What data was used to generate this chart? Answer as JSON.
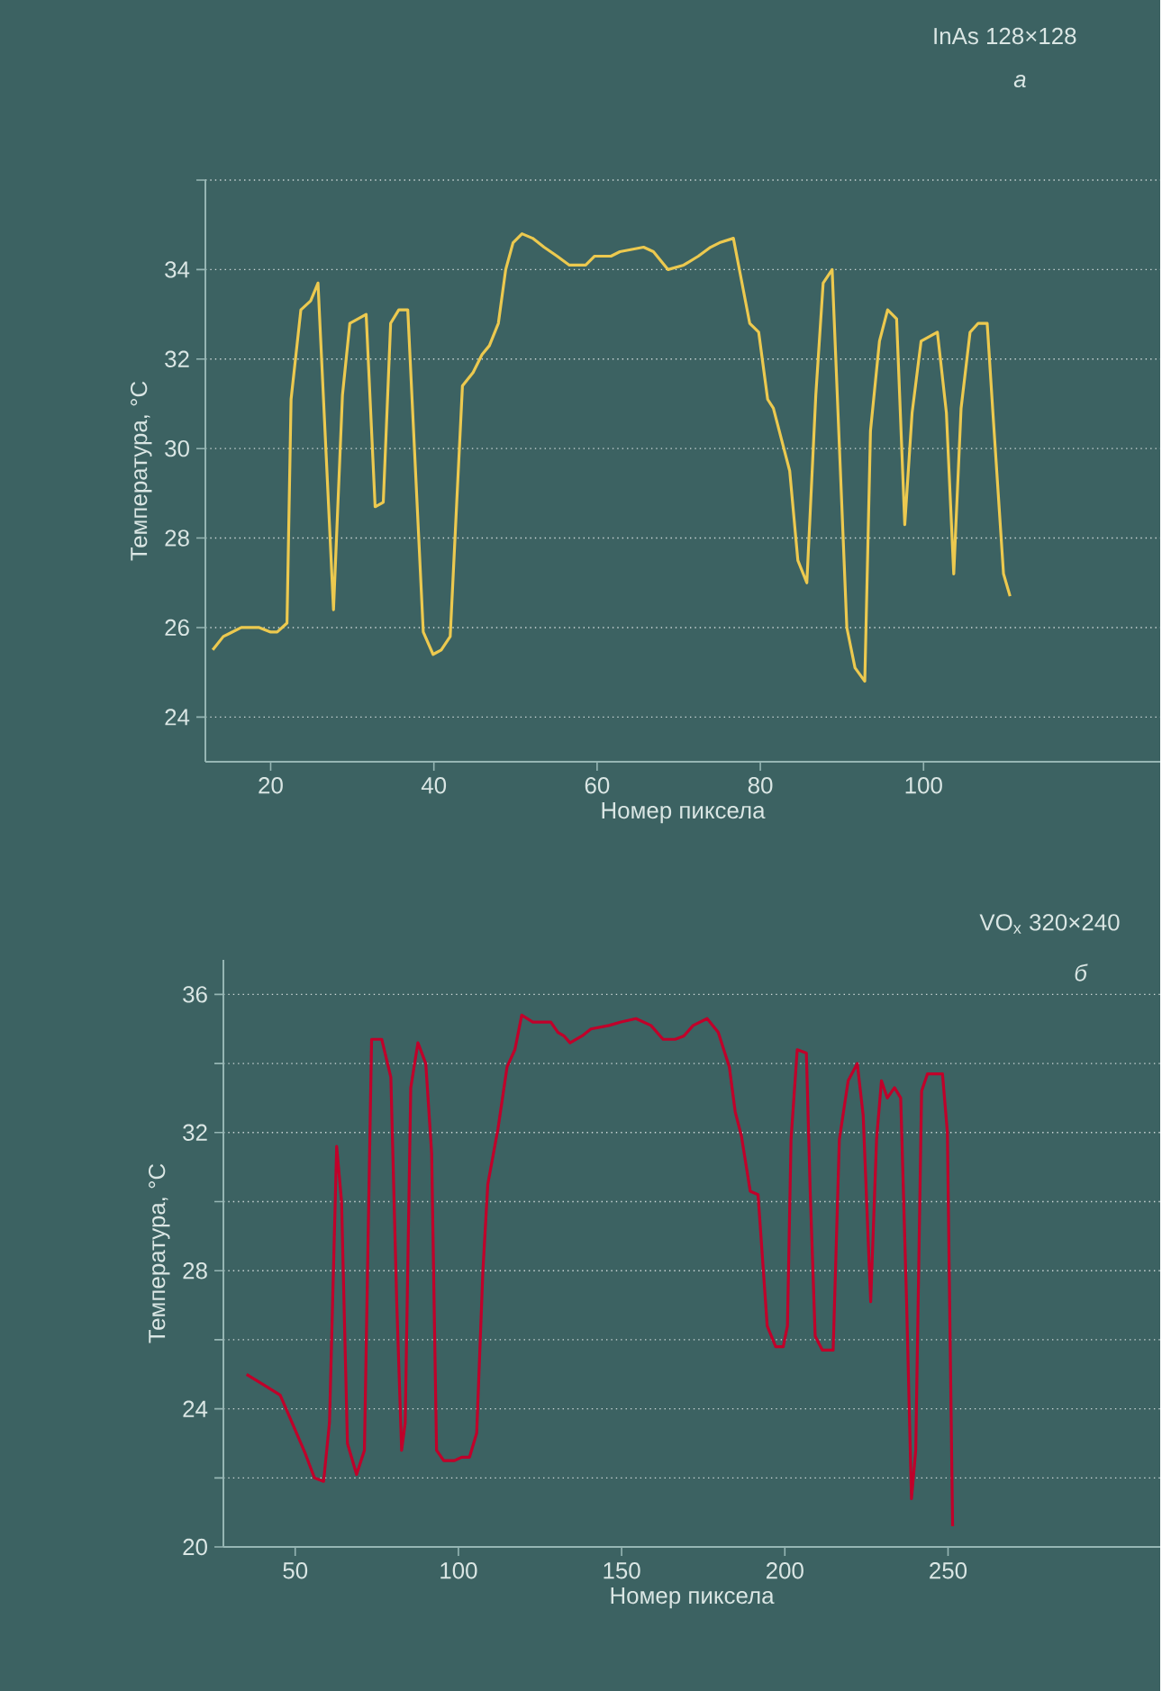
{
  "chart_data": [
    {
      "type": "line",
      "title": "InAs 128×128",
      "subtitle": "*а*",
      "xlabel": "Номер пиксела",
      "ylabel": "Температура, °C",
      "grid": "y",
      "xlim": [
        12,
        129
      ],
      "ylim": [
        23,
        36
      ],
      "xticks": [
        20,
        40,
        60,
        80,
        100
      ],
      "yticks": [
        24,
        26,
        28,
        30,
        32,
        34,
        {
          "value": 36,
          "label": null
        }
      ],
      "series": [
        {
          "color": "#ecc94f",
          "x": [
            12.9,
            14.2,
            16.4,
            18.6,
            20.0,
            20.8,
            22.0,
            22.5,
            23.7,
            24.9,
            25.8,
            27.7,
            28.8,
            29.7,
            31.7,
            32.8,
            33.8,
            34.7,
            35.7,
            36.8,
            38.7,
            39.9,
            40.9,
            42.0,
            42.8,
            43.5,
            44.8,
            45.9,
            46.8,
            47.9,
            48.8,
            49.7,
            50.8,
            52.1,
            53.5,
            55.1,
            56.6,
            58.6,
            59.7,
            61.7,
            62.8,
            65.7,
            66.9,
            68.7,
            70.6,
            72.4,
            73.9,
            75.0,
            76.7,
            78.7,
            79.8,
            80.9,
            81.6,
            83.6,
            84.6,
            85.7,
            86.8,
            87.7,
            88.8,
            89.7,
            90.6,
            91.6,
            92.8,
            93.5,
            94.6,
            95.6,
            96.7,
            97.7,
            98.6,
            99.7,
            101.7,
            102.8,
            103.7,
            104.6,
            105.7,
            106.7,
            107.8,
            108.5,
            109.8,
            110.6
          ],
          "values": [
            25.5,
            25.8,
            26.0,
            26.0,
            25.9,
            25.9,
            26.1,
            31.1,
            33.1,
            33.3,
            33.7,
            26.4,
            31.2,
            32.8,
            33.0,
            28.7,
            28.8,
            32.8,
            33.1,
            33.1,
            25.9,
            25.4,
            25.5,
            25.8,
            28.8,
            31.4,
            31.7,
            32.1,
            32.3,
            32.8,
            34.0,
            34.6,
            34.8,
            34.7,
            34.5,
            34.3,
            34.1,
            34.1,
            34.3,
            34.3,
            34.4,
            34.5,
            34.4,
            34.0,
            34.1,
            34.3,
            34.5,
            34.6,
            34.7,
            32.8,
            32.6,
            31.1,
            30.9,
            29.5,
            27.5,
            27.0,
            31.2,
            33.7,
            34.0,
            30.0,
            26.0,
            25.1,
            24.8,
            30.4,
            32.4,
            33.1,
            32.9,
            28.3,
            30.8,
            32.4,
            32.6,
            30.8,
            27.2,
            30.9,
            32.6,
            32.8,
            32.8,
            30.8,
            27.2,
            26.7
          ]
        }
      ]
    },
    {
      "type": "line",
      "title": "VO$_{x}$ 320×240",
      "subtitle": "*б*",
      "xlabel": "Номер пиксела",
      "ylabel": "Температура, °C",
      "grid": "y",
      "xlim": [
        28,
        315
      ],
      "ylim": [
        20,
        37
      ],
      "xticks": [
        50,
        100,
        150,
        200,
        250
      ],
      "yticks": [
        20,
        {
          "value": 22,
          "label": null
        },
        24,
        {
          "value": 26,
          "label": null
        },
        28,
        {
          "value": 30,
          "label": null
        },
        32,
        {
          "value": 34,
          "label": null
        },
        36
      ],
      "series": [
        {
          "color": "#c0002a",
          "x": [
            35.1,
            40.3,
            45.4,
            49.5,
            53.1,
            55.9,
            58.7,
            60.5,
            62.7,
            64.2,
            66.0,
            68.8,
            71.2,
            73.4,
            76.5,
            79.3,
            81.1,
            82.6,
            83.7,
            85.4,
            87.6,
            90.0,
            91.8,
            93.3,
            95.5,
            98.8,
            101.0,
            103.4,
            105.6,
            107.5,
            109.0,
            112.1,
            114.9,
            117.3,
            119.4,
            122.8,
            125.0,
            128.3,
            130.5,
            132.3,
            134.2,
            137.9,
            140.6,
            146.1,
            149.8,
            154.4,
            159.0,
            162.7,
            166.4,
            169.1,
            171.9,
            176.2,
            179.6,
            183.0,
            184.8,
            186.7,
            189.4,
            191.8,
            194.6,
            197.2,
            199.5,
            200.8,
            201.9,
            203.8,
            206.6,
            207.8,
            209.3,
            211.5,
            214.8,
            216.7,
            219.4,
            222.2,
            224.0,
            226.3,
            228.1,
            229.6,
            231.4,
            233.6,
            235.5,
            237.3,
            238.8,
            240.1,
            241.9,
            243.7,
            246.1,
            248.3,
            249.8,
            251.4
          ],
          "values": [
            25.0,
            24.7,
            24.4,
            23.5,
            22.7,
            22.0,
            21.9,
            23.6,
            31.6,
            30.0,
            23.0,
            22.1,
            22.8,
            34.7,
            34.7,
            33.6,
            27.1,
            22.8,
            23.6,
            33.3,
            34.6,
            34.0,
            31.4,
            22.8,
            22.5,
            22.5,
            22.6,
            22.6,
            23.3,
            28.0,
            30.5,
            32.1,
            33.9,
            34.4,
            35.4,
            35.2,
            35.2,
            35.2,
            34.9,
            34.8,
            34.6,
            34.8,
            35.0,
            35.1,
            35.2,
            35.3,
            35.1,
            34.7,
            34.7,
            34.8,
            35.1,
            35.3,
            34.9,
            33.9,
            32.6,
            31.9,
            30.3,
            30.2,
            26.4,
            25.8,
            25.8,
            26.4,
            31.8,
            34.4,
            34.3,
            30.2,
            26.1,
            25.7,
            25.7,
            31.8,
            33.5,
            34.0,
            32.5,
            27.1,
            31.8,
            33.5,
            33.0,
            33.3,
            33.0,
            27.1,
            21.4,
            22.8,
            33.2,
            33.7,
            33.7,
            33.7,
            32.0,
            20.6
          ]
        }
      ]
    }
  ]
}
